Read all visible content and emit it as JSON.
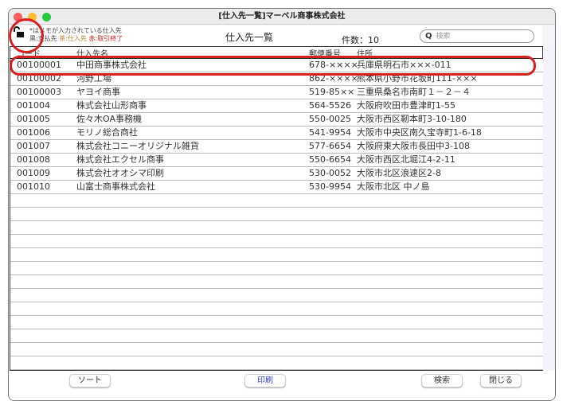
{
  "window": {
    "title": "[仕入先一覧]マーベル商事株式会社",
    "controls": {
      "close": "#fe5f57",
      "minimize": "#febc2e",
      "zoom": "#28c840"
    }
  },
  "header": {
    "legend_line1": "*はメモが入力されている仕入先",
    "legend_black": "黒:支払先",
    "legend_brown": "茶:仕入先",
    "legend_red": "赤:取引終了",
    "page_title": "仕入先一覧",
    "count_label": "件数：",
    "count_value": "10",
    "search_placeholder": "検索"
  },
  "table": {
    "columns": [
      "コード",
      "仕入先名",
      "郵便番号",
      "住所"
    ],
    "rows": [
      [
        "00100001",
        "中田商事株式会社",
        "678-××××",
        "兵庫県明石市×××-011"
      ],
      [
        "00100002",
        "河野工場",
        "862-××××",
        "熊本県小野市花坂町111-×××"
      ],
      [
        "00100003",
        "ヤヨイ商事",
        "519-85××",
        "三重県桑名市南町１－２－４"
      ],
      [
        "001004",
        "株式会社山形商事",
        "564-5526",
        "大阪府吹田市豊津町1-55"
      ],
      [
        "001005",
        "佐々木OA事務機",
        "550-0025",
        "大阪市西区靭本町3-10-180"
      ],
      [
        "001006",
        "モリノ総合商社",
        "541-9954",
        "大阪市中央区南久宝寺町1-6-18"
      ],
      [
        "001007",
        "株式会社コニーオリジナル雑貨",
        "577-6654",
        "大阪府東大阪市長田中3-108"
      ],
      [
        "001008",
        "株式会社エクセル商事",
        "550-6654",
        "大阪市西区北堀江4-2-11"
      ],
      [
        "001009",
        "株式会社オオシマ印刷",
        "530-0052",
        "大阪市北区浪速区2-8"
      ],
      [
        "001010",
        "山富士商事株式会社",
        "530-9954",
        "大阪市北区 中ノ島"
      ]
    ]
  },
  "footer": {
    "sort": "ソート",
    "print": "印刷",
    "search": "検索",
    "close": "閉じる"
  },
  "colors": {
    "annotation": "#d9201f",
    "print_text": "#3344bb"
  },
  "icons": {
    "lock": "unlocked-padlock-icon"
  }
}
